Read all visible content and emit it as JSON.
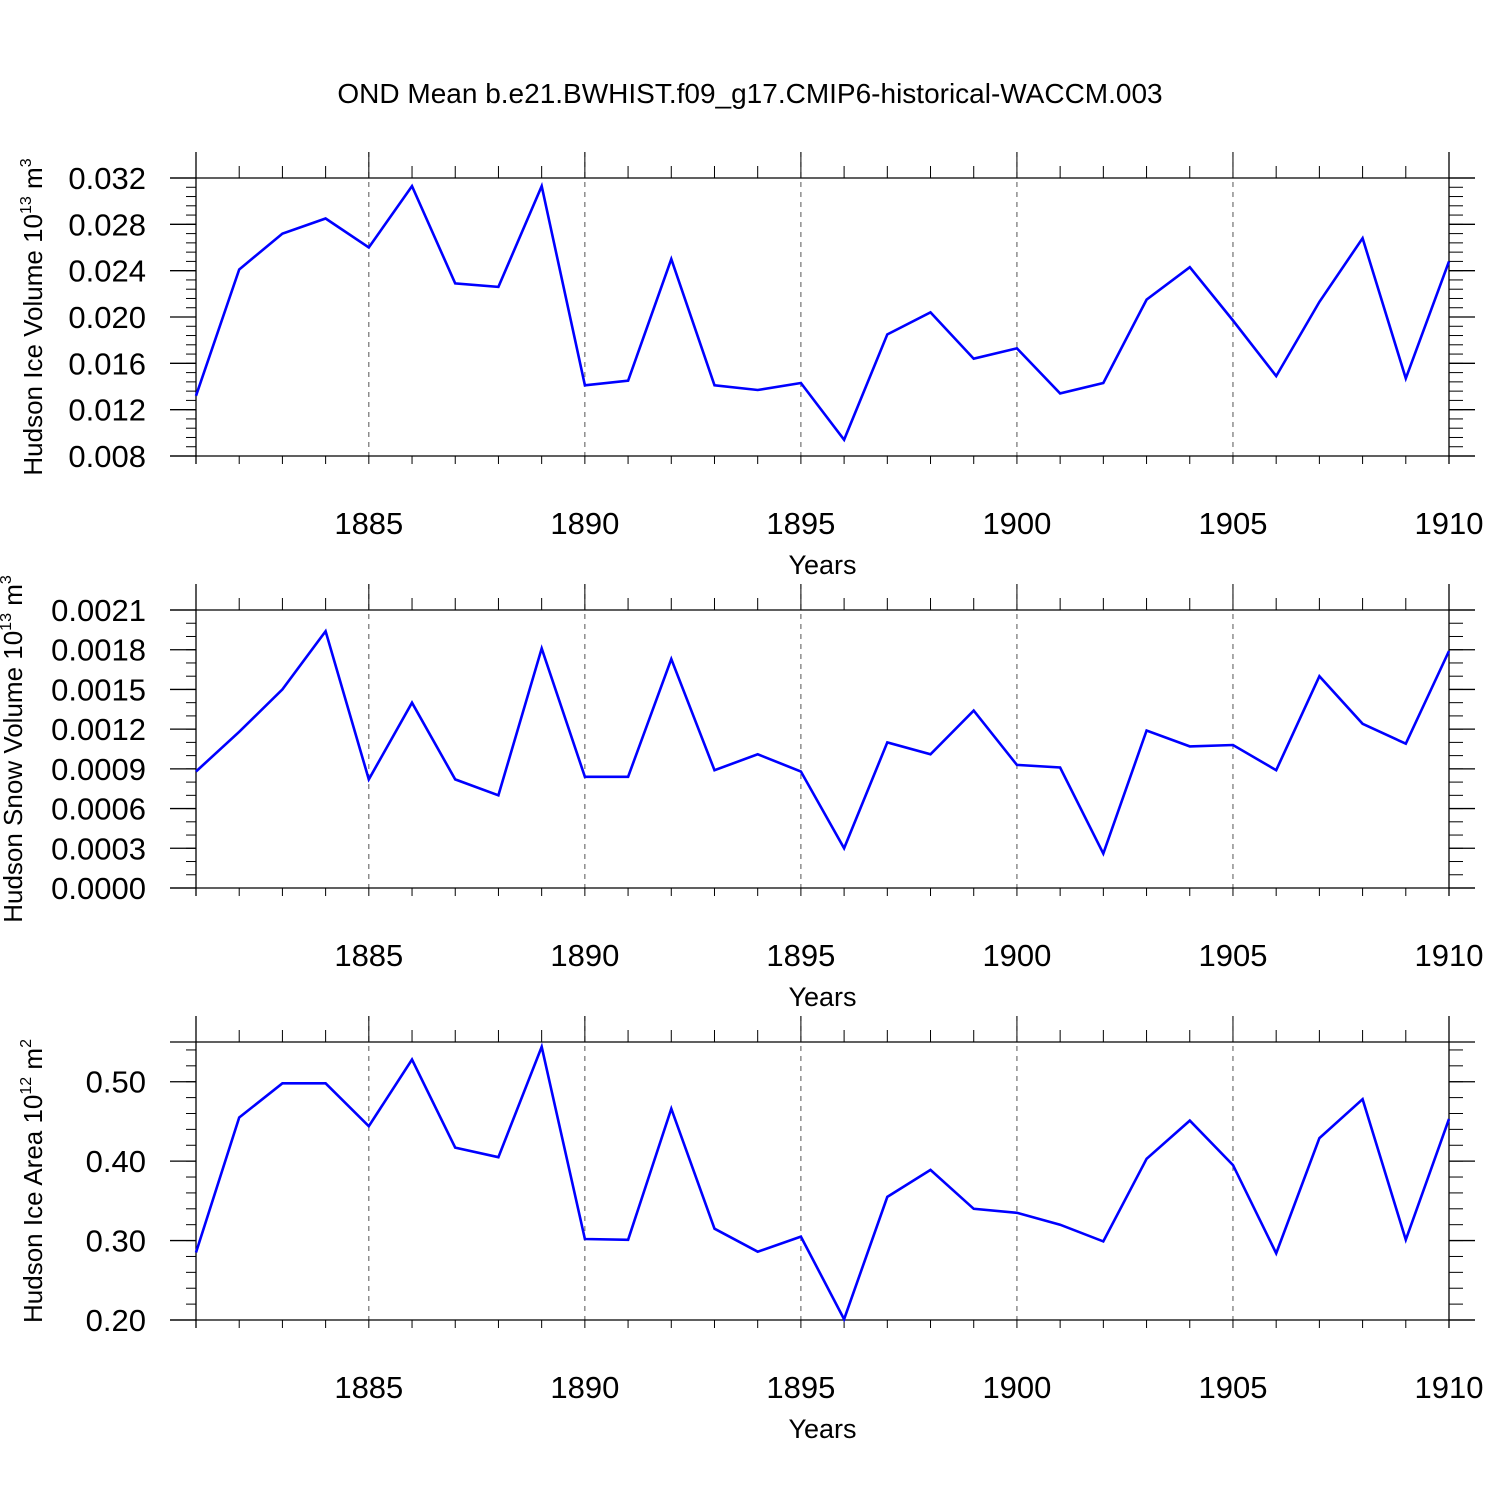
{
  "title": "OND Mean b.e21.BWHIST.f09_g17.CMIP6-historical-WACCM.003",
  "colors": {
    "line": "#0000ff",
    "axis": "#000000",
    "grid": "#555555"
  },
  "chart_data": [
    {
      "type": "line",
      "title": "OND Mean b.e21.BWHIST.f09_g17.CMIP6-historical-WACCM.003",
      "xlabel": "Years",
      "ylabel": {
        "text": "Hudson Ice Volume 10",
        "exp": "13",
        "unit": " m",
        "unit_exp": "3"
      },
      "xlim": [
        1881,
        1910
      ],
      "ylim": [
        0.008,
        0.032
      ],
      "x_ticks": [
        1885,
        1890,
        1895,
        1900,
        1905,
        1910
      ],
      "y_ticks": [
        0.008,
        0.012,
        0.016,
        0.02,
        0.024,
        0.028,
        0.032
      ],
      "y_tick_labels": [
        "0.008",
        "0.012",
        "0.016",
        "0.020",
        "0.024",
        "0.028",
        "0.032"
      ],
      "y_minor_step": 0.0008,
      "grid": "vertical dashed at major x ticks",
      "series": [
        {
          "name": "Hudson Ice Volume",
          "x": [
            1881,
            1882,
            1883,
            1884,
            1885,
            1886,
            1887,
            1888,
            1889,
            1890,
            1891,
            1892,
            1893,
            1894,
            1895,
            1896,
            1897,
            1898,
            1899,
            1900,
            1901,
            1902,
            1903,
            1904,
            1905,
            1906,
            1907,
            1908,
            1909,
            1910
          ],
          "values": [
            0.0132,
            0.0241,
            0.0272,
            0.0285,
            0.026,
            0.0313,
            0.0229,
            0.0226,
            0.0313,
            0.0141,
            0.0145,
            0.025,
            0.0141,
            0.0137,
            0.0143,
            0.0094,
            0.0185,
            0.0204,
            0.0164,
            0.0173,
            0.0134,
            0.0143,
            0.0215,
            0.0243,
            0.0197,
            0.0149,
            0.0213,
            0.0268,
            0.0147,
            0.0248
          ]
        }
      ]
    },
    {
      "type": "line",
      "xlabel": "Years",
      "ylabel": {
        "text": "Hudson Snow Volume 10",
        "exp": "13",
        "unit": " m",
        "unit_exp": "3"
      },
      "xlim": [
        1881,
        1910
      ],
      "ylim": [
        0.0,
        0.0021
      ],
      "x_ticks": [
        1885,
        1890,
        1895,
        1900,
        1905,
        1910
      ],
      "y_ticks": [
        0.0,
        0.0003,
        0.0006,
        0.0009,
        0.0012,
        0.0015,
        0.0018,
        0.0021
      ],
      "y_tick_labels": [
        "0.0000",
        "0.0003",
        "0.0006",
        "0.0009",
        "0.0012",
        "0.0015",
        "0.0018",
        "0.0021"
      ],
      "y_minor_step": 0.0001,
      "grid": "vertical dashed at major x ticks",
      "series": [
        {
          "name": "Hudson Snow Volume",
          "x": [
            1881,
            1882,
            1883,
            1884,
            1885,
            1886,
            1887,
            1888,
            1889,
            1890,
            1891,
            1892,
            1893,
            1894,
            1895,
            1896,
            1897,
            1898,
            1899,
            1900,
            1901,
            1902,
            1903,
            1904,
            1905,
            1906,
            1907,
            1908,
            1909,
            1910
          ],
          "values": [
            0.00088,
            0.00118,
            0.0015,
            0.00194,
            0.00082,
            0.0014,
            0.00082,
            0.0007,
            0.00181,
            0.00084,
            0.00084,
            0.00173,
            0.00089,
            0.00101,
            0.00088,
            0.0003,
            0.0011,
            0.00101,
            0.00134,
            0.00093,
            0.00091,
            0.00026,
            0.00119,
            0.00107,
            0.00108,
            0.00089,
            0.0016,
            0.00124,
            0.00109,
            0.00179
          ]
        }
      ]
    },
    {
      "type": "line",
      "xlabel": "Years",
      "ylabel": {
        "text": "Hudson Ice Area 10",
        "exp": "12",
        "unit": " m",
        "unit_exp": "2"
      },
      "xlim": [
        1881,
        1910
      ],
      "ylim": [
        0.2,
        0.55
      ],
      "x_ticks": [
        1885,
        1890,
        1895,
        1900,
        1905,
        1910
      ],
      "y_ticks": [
        0.2,
        0.3,
        0.4,
        0.5
      ],
      "y_tick_labels": [
        "0.20",
        "0.30",
        "0.40",
        "0.50"
      ],
      "y_minor_step": 0.02,
      "grid": "vertical dashed at major x ticks",
      "series": [
        {
          "name": "Hudson Ice Area",
          "x": [
            1881,
            1882,
            1883,
            1884,
            1885,
            1886,
            1887,
            1888,
            1889,
            1890,
            1891,
            1892,
            1893,
            1894,
            1895,
            1896,
            1897,
            1898,
            1899,
            1900,
            1901,
            1902,
            1903,
            1904,
            1905,
            1906,
            1907,
            1908,
            1909,
            1910
          ],
          "values": [
            0.285,
            0.455,
            0.498,
            0.498,
            0.444,
            0.528,
            0.417,
            0.405,
            0.544,
            0.302,
            0.301,
            0.466,
            0.315,
            0.286,
            0.305,
            0.201,
            0.355,
            0.389,
            0.34,
            0.335,
            0.32,
            0.299,
            0.403,
            0.451,
            0.395,
            0.284,
            0.429,
            0.478,
            0.301,
            0.453
          ]
        }
      ]
    }
  ]
}
